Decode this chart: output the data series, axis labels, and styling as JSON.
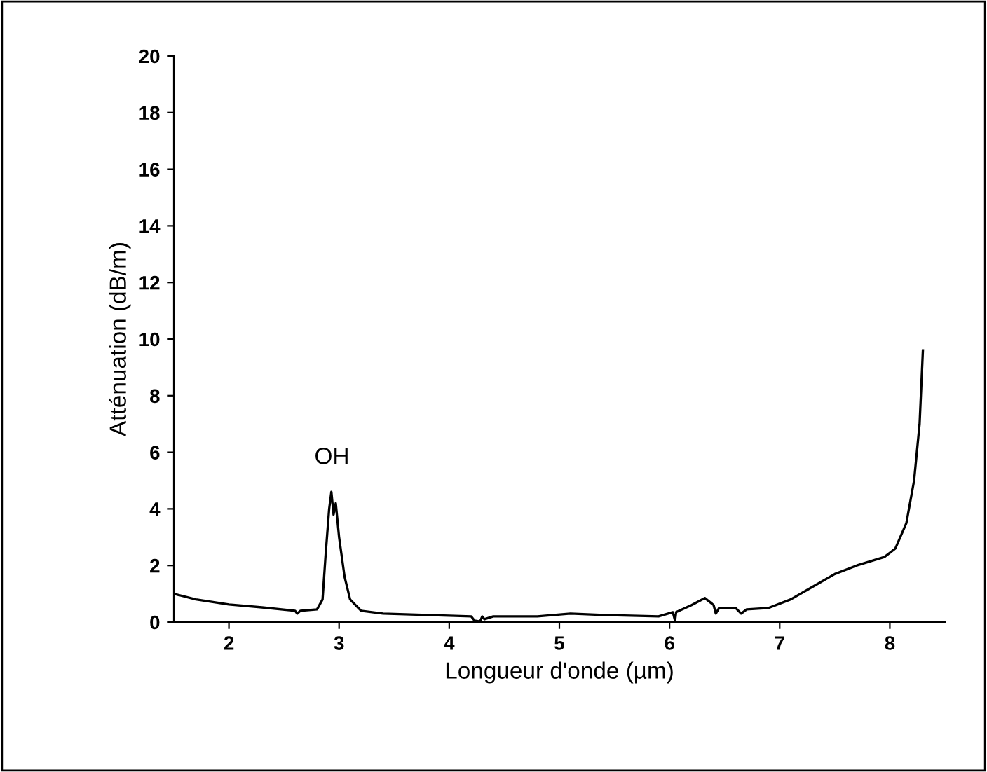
{
  "chart_data": {
    "type": "line",
    "xlabel": "Longueur d'onde (µm)",
    "ylabel": "Atténuation (dB/m)",
    "xlim": [
      1.5,
      8.5
    ],
    "xticks": [
      2,
      3,
      4,
      5,
      6,
      7,
      8
    ],
    "ylim": [
      0,
      20
    ],
    "yticks": [
      0,
      2,
      4,
      6,
      8,
      10,
      12,
      14,
      16,
      18,
      20
    ],
    "grid": false,
    "marker": "none",
    "line_style": "solid",
    "annotations": [
      "OH"
    ],
    "series": [
      {
        "color": "#000000",
        "x": [
          1.5,
          1.7,
          2.0,
          2.3,
          2.6,
          2.62,
          2.65,
          2.8,
          2.85,
          2.88,
          2.91,
          2.93,
          2.95,
          2.97,
          3.0,
          3.05,
          3.1,
          3.2,
          3.4,
          3.8,
          4.2,
          4.23,
          4.28,
          4.3,
          4.32,
          4.4,
          4.8,
          5.1,
          5.4,
          5.9,
          6.03,
          6.05,
          6.06,
          6.2,
          6.32,
          6.4,
          6.42,
          6.45,
          6.6,
          6.65,
          6.7,
          6.9,
          7.1,
          7.3,
          7.5,
          7.7,
          7.95,
          8.05,
          8.15,
          8.22,
          8.27,
          8.3
        ],
        "values": [
          1.0,
          0.8,
          0.62,
          0.52,
          0.4,
          0.3,
          0.4,
          0.45,
          0.8,
          2.5,
          4.0,
          4.6,
          3.8,
          4.2,
          3.0,
          1.6,
          0.8,
          0.4,
          0.3,
          0.25,
          0.2,
          0.05,
          0.02,
          0.2,
          0.1,
          0.2,
          0.2,
          0.3,
          0.25,
          0.2,
          0.35,
          0.05,
          0.35,
          0.6,
          0.85,
          0.6,
          0.3,
          0.5,
          0.5,
          0.3,
          0.45,
          0.5,
          0.8,
          1.25,
          1.7,
          2.0,
          2.3,
          2.6,
          3.5,
          5.0,
          7.0,
          9.6
        ]
      }
    ]
  }
}
